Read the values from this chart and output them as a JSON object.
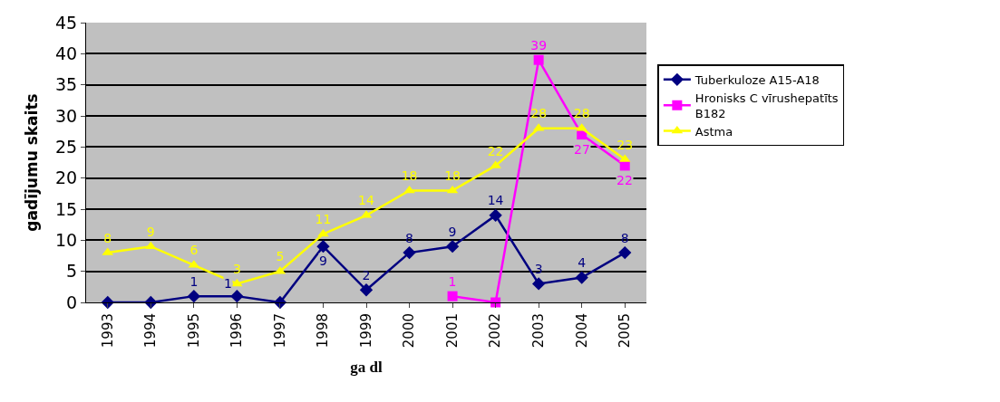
{
  "chart_data": {
    "type": "line",
    "xlabel": "ga dl",
    "ylabel": "gadījumu skaits",
    "categories": [
      "1993",
      "1994",
      "1995",
      "1996",
      "1997",
      "1998",
      "1999",
      "2000",
      "2001",
      "2002",
      "2003",
      "2004",
      "2005"
    ],
    "ylim": [
      0,
      45
    ],
    "yticks": [
      0,
      5,
      10,
      15,
      20,
      25,
      30,
      35,
      40,
      45
    ],
    "grid": "y",
    "legend": "right",
    "line_style": "solid",
    "series": [
      {
        "name": "Tuberkuloze A15-A18",
        "color": "#000080",
        "marker": "diamond",
        "values": [
          0,
          0,
          1,
          1,
          0,
          9,
          2,
          8,
          9,
          14,
          3,
          4,
          8
        ],
        "value_labels": [
          null,
          null,
          "1",
          "1",
          null,
          "9",
          "2",
          "8",
          "9",
          "14",
          "3",
          "4",
          "8"
        ]
      },
      {
        "name": "Hronisks C vīrushepatīts B182",
        "color": "#ff00ff",
        "marker": "square",
        "values": [
          null,
          null,
          null,
          null,
          null,
          null,
          null,
          null,
          1,
          0,
          39,
          27,
          22
        ],
        "value_labels": [
          null,
          null,
          null,
          null,
          null,
          null,
          null,
          null,
          "1",
          null,
          "39",
          "27",
          "22"
        ]
      },
      {
        "name": "Astma",
        "color": "#ffff00",
        "marker": "triangle",
        "values": [
          8,
          9,
          6,
          3,
          5,
          11,
          14,
          18,
          18,
          22,
          28,
          28,
          23
        ],
        "value_labels": [
          "8",
          "9",
          "6",
          "3",
          "5",
          "11",
          "14",
          "18",
          "18",
          "22",
          "28",
          "28",
          "23"
        ]
      }
    ]
  }
}
